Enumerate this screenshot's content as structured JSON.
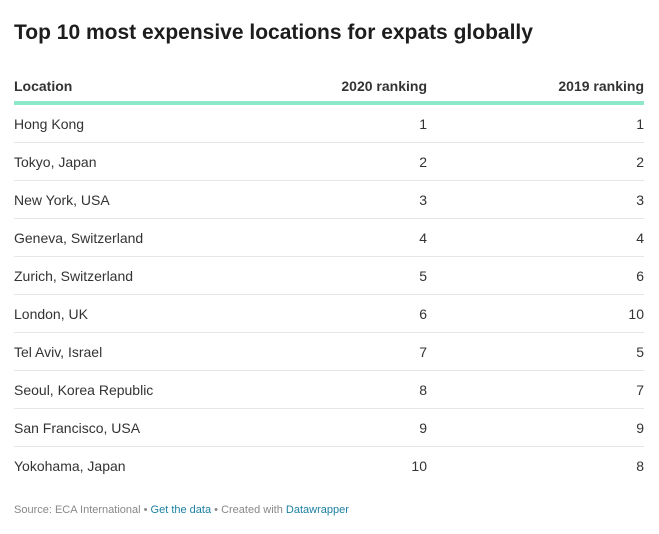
{
  "chart_data": {
    "type": "table",
    "title": "Top 10 most expensive locations for expats globally",
    "columns": [
      "Location",
      "2020 ranking",
      "2019 ranking"
    ],
    "rows": [
      [
        "Hong Kong",
        "1",
        "1"
      ],
      [
        "Tokyo, Japan",
        "2",
        "2"
      ],
      [
        "New York, USA",
        "3",
        "3"
      ],
      [
        "Geneva, Switzerland",
        "4",
        "4"
      ],
      [
        "Zurich, Switzerland",
        "5",
        "6"
      ],
      [
        "London, UK",
        "6",
        "10"
      ],
      [
        "Tel Aviv, Israel",
        "7",
        "5"
      ],
      [
        "Seoul, Korea Republic",
        "8",
        "7"
      ],
      [
        "San Francisco, USA",
        "9",
        "9"
      ],
      [
        "Yokohama, Japan",
        "10",
        "8"
      ]
    ]
  },
  "footer": {
    "source": "Source: ECA International",
    "separator": " • ",
    "get_data": "Get the data",
    "created_with": "Created with",
    "tool": "Datawrapper"
  },
  "colors": {
    "header_rule": "#8ee8ca",
    "link": "#1d81a2",
    "row_rule": "#e6e6e6"
  }
}
